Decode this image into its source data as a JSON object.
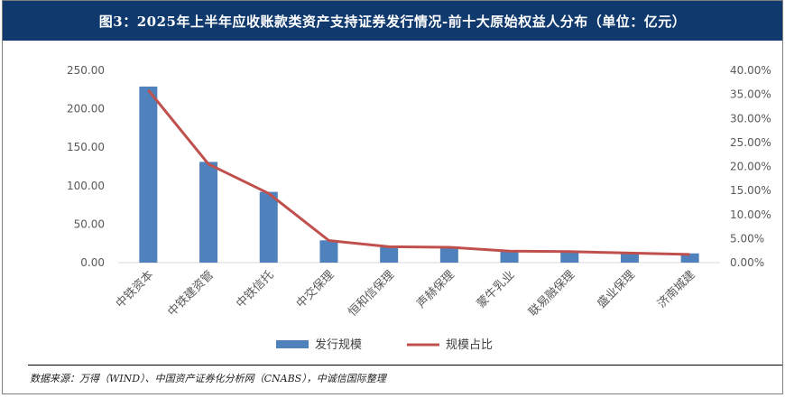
{
  "title": "图3：2025年上半年应收账款类资产支持证券发行情况-前十大原始权益人分布（单位：亿元）",
  "source": "数据来源：万得（WIND）、中国资产证券化分析网（CNABS），中诚信国际整理",
  "colors": {
    "bar": "#4f81bd",
    "line": "#c0504d",
    "title_bg": "#103a6e"
  },
  "chart_data": {
    "type": "bar",
    "categories": [
      "中铁资本",
      "中铁建资管",
      "中铁信托",
      "中交保理",
      "恒和信保理",
      "声赫保理",
      "蒙牛乳业",
      "联易融保理",
      "盛业保理",
      "济南城建"
    ],
    "series": [
      {
        "name": "发行规模",
        "type": "bar",
        "axis": "left",
        "values": [
          229,
          131,
          92,
          29,
          20,
          20,
          15,
          15,
          13,
          12
        ]
      },
      {
        "name": "规模占比",
        "type": "line",
        "axis": "right",
        "values": [
          35.9,
          20.5,
          14.4,
          4.6,
          3.3,
          3.2,
          2.4,
          2.3,
          2.0,
          1.7
        ]
      }
    ],
    "yticks_left": [
      "0.00",
      "50.00",
      "100.00",
      "150.00",
      "200.00",
      "250.00"
    ],
    "yticks_right": [
      "0.00%",
      "5.00%",
      "10.00%",
      "15.00%",
      "20.00%",
      "25.00%",
      "30.00%",
      "35.00%",
      "40.00%"
    ],
    "ylim_left": [
      0,
      250
    ],
    "ylim_right": [
      0,
      40
    ],
    "grid": false,
    "legend_position": "bottom"
  }
}
